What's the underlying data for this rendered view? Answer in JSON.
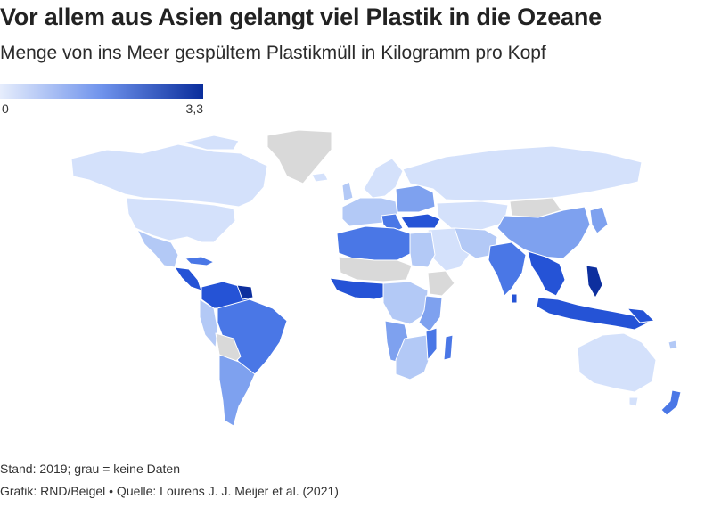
{
  "header": {
    "title": "Vor allem aus Asien gelangt viel Plastik in die Ozeane",
    "subtitle": "Menge von ins Meer gespültem Plastikmüll in Kilogramm pro Kopf"
  },
  "legend": {
    "min_label": "0",
    "max_label": "3,3",
    "color_low": "#dce6fb",
    "color_high": "#0a2d9c"
  },
  "colors": {
    "no_data": "#d9d9d9",
    "very_low": "#d4e1fb",
    "low": "#b3c9f6",
    "medium": "#7ea1ef",
    "high": "#4a77e6",
    "very_high": "#2553d6",
    "max": "#0d2f9e"
  },
  "footer": {
    "note": "Stand: 2019; grau = keine Daten",
    "source": "Grafik: RND/Beigel • Quelle: Lourens J. J. Meijer et al. (2021)"
  }
}
